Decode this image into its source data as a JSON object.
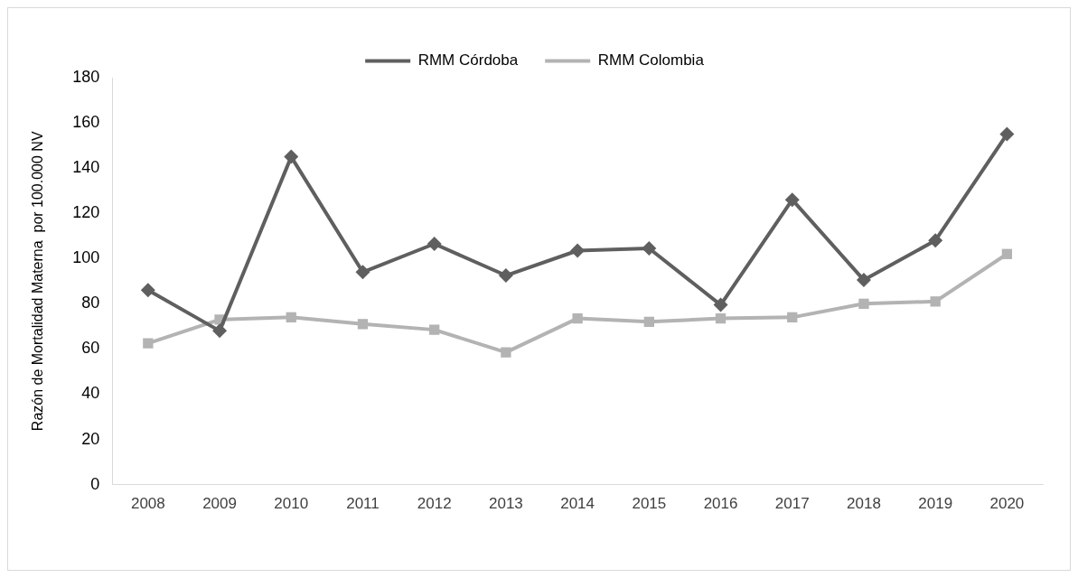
{
  "chart_data": {
    "type": "line",
    "ylabel": "Razón de Mortalidad Materna  por 100.000 NV",
    "categories": [
      "2008",
      "2009",
      "2010",
      "2011",
      "2012",
      "2013",
      "2014",
      "2015",
      "2016",
      "2017",
      "2018",
      "2019",
      "2020"
    ],
    "series": [
      {
        "name": "RMM Córdoba",
        "color": "#5f5f5f",
        "marker": "diamond",
        "values": [
          86,
          68,
          145,
          94,
          106.5,
          92.5,
          103.5,
          104.5,
          79.5,
          126,
          90.5,
          108,
          155
        ]
      },
      {
        "name": "RMM Colombia",
        "color": "#b3b3b3",
        "marker": "square",
        "values": [
          62.5,
          73,
          74,
          71,
          68.5,
          58.5,
          73.5,
          72,
          73.5,
          74,
          80,
          81,
          102
        ]
      }
    ],
    "ylim": [
      0,
      180
    ],
    "yticks": [
      0,
      20,
      40,
      60,
      80,
      100,
      120,
      140,
      160,
      180
    ],
    "grid": false,
    "legend": "top",
    "line_style": "solid"
  }
}
